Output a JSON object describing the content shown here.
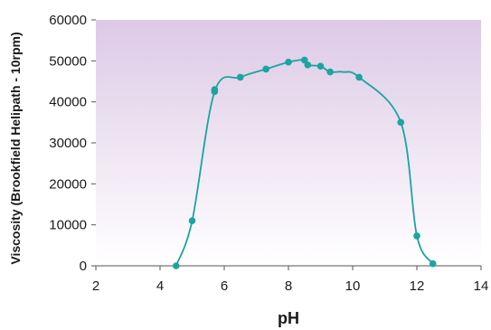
{
  "chart_data": {
    "type": "line",
    "xlabel": "pH",
    "ylabel": "Viscosity (Brookfield Helipath - 10rpm)",
    "xlim": [
      2,
      14
    ],
    "ylim": [
      0,
      60000
    ],
    "xticks": [
      2,
      4,
      6,
      8,
      10,
      12,
      14
    ],
    "yticks": [
      0,
      10000,
      20000,
      30000,
      40000,
      50000,
      60000
    ],
    "grid": false,
    "legend": "none",
    "colors": {
      "series": "#1aa5a0",
      "background_top": "#ddc9e6",
      "background_bottom": "#ffffff",
      "axis": "#555555"
    },
    "series": [
      {
        "points": [
          [
            4.5,
            0
          ],
          [
            5.0,
            11000
          ],
          [
            5.7,
            42500
          ],
          [
            5.7,
            43000
          ],
          [
            6.5,
            46000
          ],
          [
            7.3,
            48000
          ],
          [
            8.0,
            49700
          ],
          [
            8.5,
            50200
          ],
          [
            8.6,
            49000
          ],
          [
            9.0,
            48700
          ],
          [
            9.3,
            47300
          ],
          [
            10.2,
            46000
          ],
          [
            11.5,
            35000
          ],
          [
            12.0,
            7300
          ],
          [
            12.5,
            500
          ]
        ],
        "curve": [
          [
            4.5,
            0
          ],
          [
            5.0,
            11000
          ],
          [
            5.7,
            42500
          ],
          [
            6.5,
            46000
          ],
          [
            7.3,
            48000
          ],
          [
            8.0,
            49700
          ],
          [
            8.5,
            50200
          ],
          [
            8.6,
            49000
          ],
          [
            9.0,
            48700
          ],
          [
            9.3,
            47300
          ],
          [
            9.7,
            47300
          ],
          [
            10.2,
            46000
          ],
          [
            11.5,
            35000
          ],
          [
            12.0,
            7300
          ],
          [
            12.5,
            500
          ]
        ]
      }
    ]
  }
}
